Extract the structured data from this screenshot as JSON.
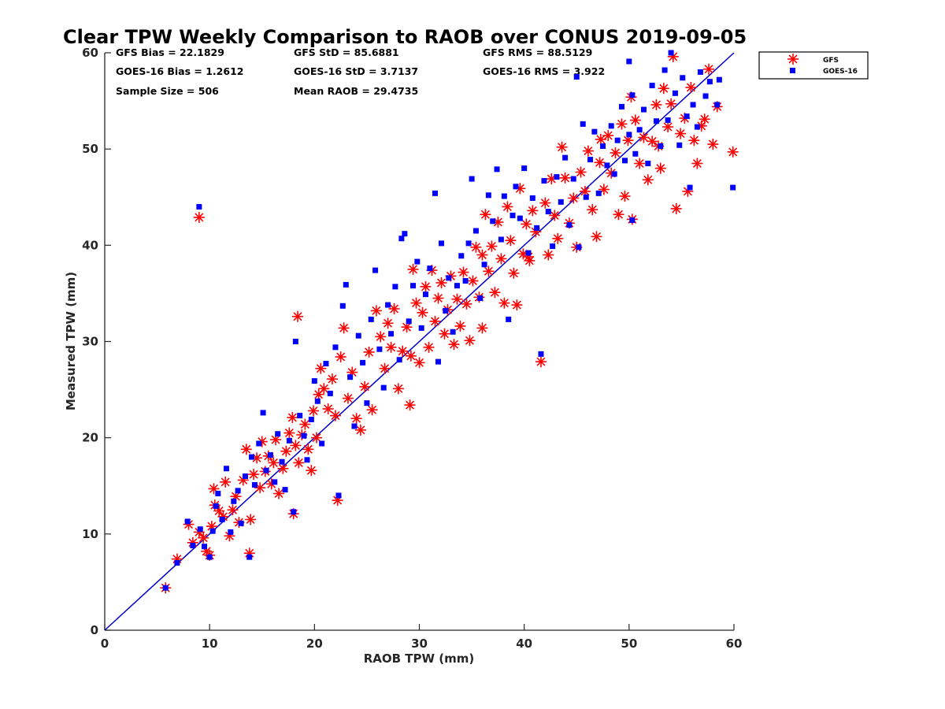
{
  "chart_data": {
    "type": "scatter",
    "title": "Clear TPW Weekly Comparison to RAOB over CONUS 2019-09-05",
    "xlabel": "RAOB TPW (mm)",
    "ylabel": "Measured TPW (mm)",
    "xlim": [
      0,
      60
    ],
    "ylim": [
      0,
      60
    ],
    "x_ticks": [
      "0",
      "10",
      "20",
      "30",
      "40",
      "50",
      "60"
    ],
    "y_ticks": [
      "0",
      "10",
      "20",
      "30",
      "40",
      "50",
      "60"
    ],
    "grid": false,
    "legend_position": "outside top-right",
    "one_to_one_line": true,
    "stats": [
      [
        "GFS Bias = 22.1829",
        "GFS StD = 85.6881",
        "GFS RMS = 88.5129"
      ],
      [
        "GOES-16 Bias = 1.2612",
        "GOES-16 StD = 3.7137",
        "GOES-16 RMS = 3.922"
      ],
      [
        "Sample Size = 506",
        "Mean RAOB = 29.4735",
        ""
      ]
    ],
    "series": [
      {
        "name": "GFS",
        "marker": "asterisk",
        "color": "#ff0000",
        "points": [
          [
            5.8,
            4.4
          ],
          [
            6.9,
            7.4
          ],
          [
            8.0,
            11.0
          ],
          [
            8.4,
            9.1
          ],
          [
            9.0,
            10.2
          ],
          [
            9.4,
            9.6
          ],
          [
            9.7,
            8.2
          ],
          [
            10.0,
            7.8
          ],
          [
            10.2,
            10.8
          ],
          [
            10.5,
            13.0
          ],
          [
            10.4,
            14.7
          ],
          [
            10.9,
            12.4
          ],
          [
            11.3,
            11.8
          ],
          [
            11.5,
            15.4
          ],
          [
            11.9,
            9.8
          ],
          [
            12.2,
            12.5
          ],
          [
            12.5,
            13.9
          ],
          [
            12.8,
            11.2
          ],
          [
            13.2,
            15.6
          ],
          [
            13.5,
            18.8
          ],
          [
            13.9,
            11.5
          ],
          [
            13.8,
            8.0
          ],
          [
            14.2,
            16.2
          ],
          [
            14.5,
            17.9
          ],
          [
            14.8,
            14.8
          ],
          [
            15.0,
            19.6
          ],
          [
            15.3,
            16.5
          ],
          [
            15.6,
            18.1
          ],
          [
            15.9,
            15.2
          ],
          [
            16.1,
            17.4
          ],
          [
            16.3,
            19.8
          ],
          [
            16.6,
            14.2
          ],
          [
            17.0,
            16.8
          ],
          [
            17.3,
            18.6
          ],
          [
            17.6,
            20.5
          ],
          [
            17.9,
            22.1
          ],
          [
            18.2,
            19.2
          ],
          [
            18.0,
            12.1
          ],
          [
            18.5,
            17.4
          ],
          [
            18.8,
            20.3
          ],
          [
            19.1,
            21.4
          ],
          [
            19.4,
            18.8
          ],
          [
            19.7,
            16.6
          ],
          [
            19.9,
            22.8
          ],
          [
            20.2,
            20.0
          ],
          [
            20.4,
            24.5
          ],
          [
            20.6,
            27.2
          ],
          [
            20.9,
            25.1
          ],
          [
            21.3,
            23.0
          ],
          [
            21.7,
            26.1
          ],
          [
            22.0,
            22.3
          ],
          [
            22.2,
            13.5
          ],
          [
            22.5,
            28.4
          ],
          [
            22.8,
            31.4
          ],
          [
            23.2,
            24.1
          ],
          [
            23.6,
            26.8
          ],
          [
            24.0,
            22.0
          ],
          [
            24.4,
            20.8
          ],
          [
            24.8,
            25.3
          ],
          [
            25.2,
            28.9
          ],
          [
            25.5,
            22.9
          ],
          [
            25.9,
            33.2
          ],
          [
            26.3,
            30.5
          ],
          [
            26.7,
            27.2
          ],
          [
            27.0,
            31.9
          ],
          [
            27.3,
            29.4
          ],
          [
            27.6,
            33.4
          ],
          [
            28.0,
            25.1
          ],
          [
            28.4,
            29.0
          ],
          [
            28.8,
            31.5
          ],
          [
            29.1,
            23.4
          ],
          [
            29.4,
            37.5
          ],
          [
            29.7,
            34.0
          ],
          [
            30.0,
            27.8
          ],
          [
            30.3,
            33.0
          ],
          [
            30.6,
            35.7
          ],
          [
            30.9,
            29.4
          ],
          [
            31.2,
            37.4
          ],
          [
            31.5,
            32.1
          ],
          [
            31.8,
            34.5
          ],
          [
            32.1,
            36.1
          ],
          [
            32.4,
            30.8
          ],
          [
            32.7,
            33.3
          ],
          [
            33.0,
            36.8
          ],
          [
            33.3,
            29.7
          ],
          [
            33.6,
            34.4
          ],
          [
            33.9,
            31.6
          ],
          [
            34.2,
            37.2
          ],
          [
            34.5,
            33.9
          ],
          [
            34.8,
            30.1
          ],
          [
            35.1,
            36.3
          ],
          [
            35.4,
            39.8
          ],
          [
            35.7,
            34.6
          ],
          [
            36.0,
            31.4
          ],
          [
            36.3,
            43.2
          ],
          [
            36.6,
            37.3
          ],
          [
            36.9,
            39.9
          ],
          [
            37.2,
            35.1
          ],
          [
            37.5,
            42.4
          ],
          [
            37.8,
            38.6
          ],
          [
            38.1,
            34.0
          ],
          [
            38.4,
            44.0
          ],
          [
            38.7,
            40.5
          ],
          [
            39.0,
            37.1
          ],
          [
            39.3,
            33.8
          ],
          [
            39.6,
            45.9
          ],
          [
            39.9,
            39.1
          ],
          [
            40.2,
            42.2
          ],
          [
            40.5,
            38.4
          ],
          [
            40.8,
            43.6
          ],
          [
            41.1,
            41.4
          ],
          [
            41.6,
            27.9
          ],
          [
            42.0,
            44.4
          ],
          [
            42.3,
            39.0
          ],
          [
            42.6,
            46.9
          ],
          [
            42.9,
            43.1
          ],
          [
            43.2,
            40.7
          ],
          [
            43.6,
            50.2
          ],
          [
            43.9,
            47.0
          ],
          [
            44.3,
            42.3
          ],
          [
            44.7,
            44.9
          ],
          [
            45.0,
            39.8
          ],
          [
            45.4,
            47.6
          ],
          [
            45.8,
            45.6
          ],
          [
            46.1,
            49.8
          ],
          [
            46.5,
            43.7
          ],
          [
            46.9,
            40.9
          ],
          [
            47.2,
            48.6
          ],
          [
            47.6,
            45.8
          ],
          [
            48.0,
            51.4
          ],
          [
            48.3,
            47.5
          ],
          [
            48.7,
            49.6
          ],
          [
            49.0,
            43.2
          ],
          [
            49.3,
            52.6
          ],
          [
            49.6,
            45.1
          ],
          [
            49.9,
            50.9
          ],
          [
            50.2,
            55.4
          ],
          [
            50.6,
            53.0
          ],
          [
            50.3,
            42.7
          ],
          [
            51.0,
            48.5
          ],
          [
            51.4,
            51.2
          ],
          [
            51.8,
            46.8
          ],
          [
            52.2,
            50.8
          ],
          [
            52.6,
            54.6
          ],
          [
            53.0,
            48.0
          ],
          [
            53.3,
            56.3
          ],
          [
            53.7,
            52.3
          ],
          [
            54.0,
            54.7
          ],
          [
            54.2,
            59.6
          ],
          [
            54.5,
            43.8
          ],
          [
            54.9,
            51.6
          ],
          [
            55.3,
            53.2
          ],
          [
            55.6,
            45.6
          ],
          [
            55.9,
            56.4
          ],
          [
            56.2,
            50.9
          ],
          [
            56.5,
            48.5
          ],
          [
            56.9,
            52.4
          ],
          [
            57.2,
            53.1
          ],
          [
            57.6,
            58.3
          ],
          [
            58.0,
            50.5
          ],
          [
            58.4,
            54.4
          ],
          [
            59.9,
            49.7
          ],
          [
            9.0,
            42.9
          ],
          [
            18.4,
            32.6
          ],
          [
            29.2,
            28.5
          ],
          [
            36.0,
            39.0
          ],
          [
            40.4,
            38.8
          ],
          [
            47.3,
            51.0
          ],
          [
            52.8,
            50.3
          ]
        ]
      },
      {
        "name": "GOES-16",
        "marker": "square",
        "color": "#0000ff",
        "points": [
          [
            5.8,
            4.4
          ],
          [
            6.9,
            7.0
          ],
          [
            7.9,
            11.3
          ],
          [
            8.4,
            8.8
          ],
          [
            9.1,
            10.5
          ],
          [
            9.5,
            8.7
          ],
          [
            10.0,
            7.6
          ],
          [
            10.3,
            10.3
          ],
          [
            10.6,
            12.9
          ],
          [
            10.8,
            14.2
          ],
          [
            11.2,
            11.5
          ],
          [
            11.6,
            16.8
          ],
          [
            12.0,
            10.2
          ],
          [
            12.3,
            13.4
          ],
          [
            12.7,
            14.5
          ],
          [
            13.0,
            11.1
          ],
          [
            13.4,
            16.0
          ],
          [
            13.8,
            7.6
          ],
          [
            14.0,
            18.0
          ],
          [
            14.3,
            15.1
          ],
          [
            14.7,
            19.4
          ],
          [
            15.1,
            22.6
          ],
          [
            15.4,
            16.6
          ],
          [
            15.8,
            18.2
          ],
          [
            16.2,
            15.4
          ],
          [
            16.5,
            20.4
          ],
          [
            16.9,
            17.5
          ],
          [
            17.2,
            14.6
          ],
          [
            17.6,
            19.7
          ],
          [
            18.0,
            12.3
          ],
          [
            18.2,
            30.0
          ],
          [
            18.6,
            22.3
          ],
          [
            19.0,
            20.2
          ],
          [
            19.3,
            17.7
          ],
          [
            19.7,
            21.9
          ],
          [
            20.0,
            25.9
          ],
          [
            20.3,
            23.8
          ],
          [
            20.7,
            19.4
          ],
          [
            21.1,
            27.7
          ],
          [
            21.5,
            24.6
          ],
          [
            22.0,
            29.4
          ],
          [
            22.3,
            14.0
          ],
          [
            22.7,
            33.7
          ],
          [
            23.0,
            35.9
          ],
          [
            23.4,
            26.3
          ],
          [
            23.8,
            21.2
          ],
          [
            24.2,
            30.6
          ],
          [
            24.6,
            27.8
          ],
          [
            25.0,
            23.6
          ],
          [
            25.4,
            32.3
          ],
          [
            25.8,
            37.4
          ],
          [
            26.2,
            29.2
          ],
          [
            26.6,
            25.2
          ],
          [
            27.0,
            33.8
          ],
          [
            27.3,
            30.8
          ],
          [
            27.7,
            35.7
          ],
          [
            28.1,
            28.1
          ],
          [
            28.3,
            40.7
          ],
          [
            28.6,
            41.2
          ],
          [
            29.0,
            32.1
          ],
          [
            29.4,
            35.8
          ],
          [
            29.8,
            38.3
          ],
          [
            30.2,
            31.4
          ],
          [
            30.6,
            34.9
          ],
          [
            31.0,
            37.6
          ],
          [
            31.5,
            45.4
          ],
          [
            31.8,
            27.9
          ],
          [
            32.1,
            40.2
          ],
          [
            32.5,
            33.2
          ],
          [
            32.8,
            36.6
          ],
          [
            33.2,
            31.0
          ],
          [
            33.6,
            35.8
          ],
          [
            34.0,
            38.9
          ],
          [
            34.4,
            36.3
          ],
          [
            34.7,
            40.2
          ],
          [
            35.0,
            46.9
          ],
          [
            35.4,
            41.5
          ],
          [
            35.8,
            34.5
          ],
          [
            36.2,
            38.0
          ],
          [
            36.6,
            45.2
          ],
          [
            37.0,
            42.5
          ],
          [
            37.4,
            47.9
          ],
          [
            37.8,
            40.6
          ],
          [
            38.1,
            45.1
          ],
          [
            38.5,
            32.3
          ],
          [
            38.9,
            43.1
          ],
          [
            39.2,
            46.1
          ],
          [
            39.6,
            42.8
          ],
          [
            40.0,
            48.0
          ],
          [
            40.4,
            39.2
          ],
          [
            40.8,
            44.9
          ],
          [
            41.2,
            41.8
          ],
          [
            41.6,
            28.7
          ],
          [
            41.9,
            46.7
          ],
          [
            42.3,
            43.5
          ],
          [
            42.7,
            39.9
          ],
          [
            43.1,
            47.1
          ],
          [
            43.5,
            44.5
          ],
          [
            43.9,
            49.1
          ],
          [
            44.3,
            42.1
          ],
          [
            44.7,
            46.9
          ],
          [
            45.0,
            57.5
          ],
          [
            45.2,
            39.8
          ],
          [
            45.6,
            52.6
          ],
          [
            45.9,
            45.0
          ],
          [
            46.3,
            48.9
          ],
          [
            46.7,
            51.8
          ],
          [
            47.1,
            45.4
          ],
          [
            47.5,
            50.3
          ],
          [
            47.9,
            48.3
          ],
          [
            48.3,
            52.4
          ],
          [
            48.6,
            47.4
          ],
          [
            48.9,
            50.9
          ],
          [
            49.3,
            54.4
          ],
          [
            49.6,
            48.8
          ],
          [
            50.0,
            51.5
          ],
          [
            50.0,
            59.1
          ],
          [
            50.3,
            55.6
          ],
          [
            50.6,
            49.5
          ],
          [
            51.0,
            52.0
          ],
          [
            51.4,
            54.1
          ],
          [
            51.8,
            48.5
          ],
          [
            52.2,
            56.6
          ],
          [
            52.6,
            52.9
          ],
          [
            53.0,
            50.3
          ],
          [
            53.4,
            58.2
          ],
          [
            53.7,
            53.0
          ],
          [
            54.0,
            60.0
          ],
          [
            54.4,
            55.8
          ],
          [
            54.8,
            50.4
          ],
          [
            55.1,
            57.4
          ],
          [
            55.5,
            53.4
          ],
          [
            55.8,
            46.0
          ],
          [
            56.1,
            54.6
          ],
          [
            56.5,
            52.3
          ],
          [
            56.8,
            58.0
          ],
          [
            57.3,
            55.5
          ],
          [
            57.7,
            57.0
          ],
          [
            58.4,
            54.6
          ],
          [
            58.6,
            57.2
          ],
          [
            59.9,
            46.0
          ],
          [
            9.0,
            44.0
          ],
          [
            50.3,
            42.6
          ]
        ]
      }
    ]
  }
}
